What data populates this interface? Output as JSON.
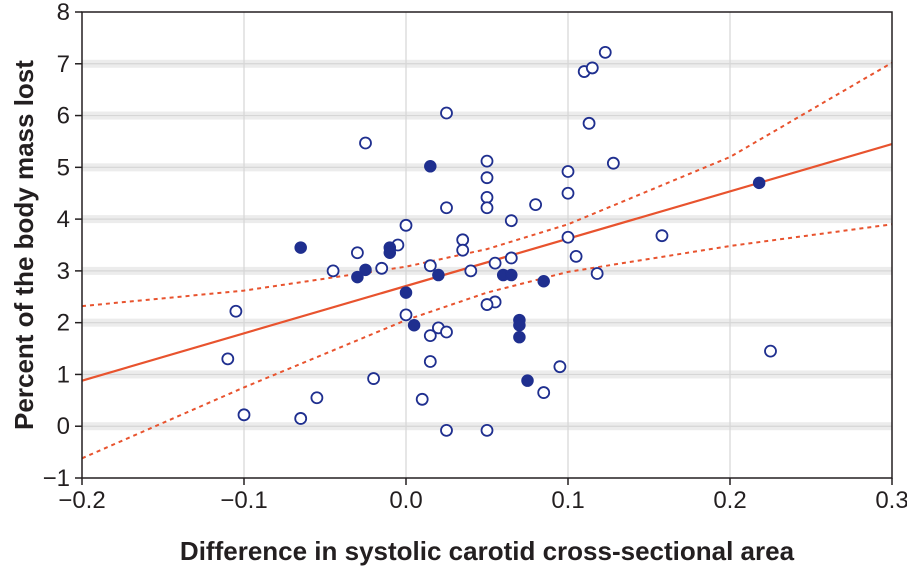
{
  "chart_data": {
    "type": "scatter",
    "title": "",
    "xlabel": "Difference in systolic carotid cross-sectional area",
    "ylabel": "Percent of the body mass lost",
    "xlim": [
      -0.2,
      0.3
    ],
    "ylim": [
      -1,
      8
    ],
    "x_ticks": [
      -0.2,
      -0.1,
      0.0,
      0.1,
      0.2,
      0.3
    ],
    "x_tick_labels": [
      "−0.2",
      "−0.1",
      "0.0",
      "0.1",
      "0.2",
      "0.3"
    ],
    "y_ticks": [
      -1,
      0,
      1,
      2,
      3,
      4,
      5,
      6,
      7,
      8
    ],
    "y_tick_labels": [
      "−1",
      "0",
      "1",
      "2",
      "3",
      "4",
      "5",
      "6",
      "7",
      "8"
    ],
    "grid": true,
    "colors": {
      "points": "#1f2f8f",
      "fit_line": "#e8532e",
      "confidence_band": "#e8532e",
      "grid": "#d6d6d6",
      "gridband": "#ececec",
      "axis": "#231f20"
    },
    "series": [
      {
        "marker": "open-circle",
        "points": [
          {
            "x": 0.123,
            "y": 7.22
          },
          {
            "x": 0.11,
            "y": 6.85
          },
          {
            "x": 0.115,
            "y": 6.92
          },
          {
            "x": 0.025,
            "y": 6.05
          },
          {
            "x": 0.113,
            "y": 5.85
          },
          {
            "x": -0.025,
            "y": 5.47
          },
          {
            "x": 0.05,
            "y": 5.12
          },
          {
            "x": 0.128,
            "y": 5.08
          },
          {
            "x": 0.1,
            "y": 4.92
          },
          {
            "x": 0.05,
            "y": 4.8
          },
          {
            "x": 0.1,
            "y": 4.5
          },
          {
            "x": 0.05,
            "y": 4.42
          },
          {
            "x": 0.025,
            "y": 4.22
          },
          {
            "x": 0.05,
            "y": 4.22
          },
          {
            "x": 0.08,
            "y": 4.28
          },
          {
            "x": 0.065,
            "y": 3.97
          },
          {
            "x": 0.0,
            "y": 3.88
          },
          {
            "x": 0.158,
            "y": 3.68
          },
          {
            "x": 0.1,
            "y": 3.65
          },
          {
            "x": 0.035,
            "y": 3.6
          },
          {
            "x": -0.005,
            "y": 3.5
          },
          {
            "x": 0.035,
            "y": 3.4
          },
          {
            "x": -0.03,
            "y": 3.35
          },
          {
            "x": 0.105,
            "y": 3.28
          },
          {
            "x": 0.065,
            "y": 3.25
          },
          {
            "x": 0.055,
            "y": 3.15
          },
          {
            "x": 0.015,
            "y": 3.1
          },
          {
            "x": -0.045,
            "y": 3.0
          },
          {
            "x": -0.015,
            "y": 3.05
          },
          {
            "x": 0.04,
            "y": 3.0
          },
          {
            "x": 0.118,
            "y": 2.95
          },
          {
            "x": 0.055,
            "y": 2.4
          },
          {
            "x": 0.05,
            "y": 2.35
          },
          {
            "x": -0.105,
            "y": 2.22
          },
          {
            "x": 0.0,
            "y": 2.15
          },
          {
            "x": 0.02,
            "y": 1.9
          },
          {
            "x": 0.025,
            "y": 1.82
          },
          {
            "x": 0.015,
            "y": 1.75
          },
          {
            "x": -0.11,
            "y": 1.3
          },
          {
            "x": 0.015,
            "y": 1.25
          },
          {
            "x": 0.095,
            "y": 1.15
          },
          {
            "x": 0.225,
            "y": 1.45
          },
          {
            "x": -0.02,
            "y": 0.92
          },
          {
            "x": -0.055,
            "y": 0.55
          },
          {
            "x": 0.01,
            "y": 0.52
          },
          {
            "x": 0.085,
            "y": 0.65
          },
          {
            "x": -0.1,
            "y": 0.22
          },
          {
            "x": -0.065,
            "y": 0.15
          },
          {
            "x": 0.025,
            "y": -0.08
          },
          {
            "x": 0.05,
            "y": -0.08
          }
        ]
      },
      {
        "marker": "filled-circle",
        "points": [
          {
            "x": 0.015,
            "y": 5.02
          },
          {
            "x": 0.218,
            "y": 4.7
          },
          {
            "x": -0.065,
            "y": 3.45
          },
          {
            "x": -0.01,
            "y": 3.45
          },
          {
            "x": -0.01,
            "y": 3.35
          },
          {
            "x": -0.025,
            "y": 3.02
          },
          {
            "x": -0.03,
            "y": 2.88
          },
          {
            "x": 0.02,
            "y": 2.92
          },
          {
            "x": 0.06,
            "y": 2.92
          },
          {
            "x": 0.065,
            "y": 2.92
          },
          {
            "x": 0.085,
            "y": 2.8
          },
          {
            "x": 0.0,
            "y": 2.58
          },
          {
            "x": 0.005,
            "y": 1.95
          },
          {
            "x": 0.07,
            "y": 2.05
          },
          {
            "x": 0.07,
            "y": 1.95
          },
          {
            "x": 0.07,
            "y": 1.72
          },
          {
            "x": 0.075,
            "y": 0.88
          }
        ]
      }
    ],
    "fit_line": {
      "x": [
        -0.2,
        0.3
      ],
      "y": [
        0.88,
        5.45
      ]
    },
    "confidence_upper": {
      "x": [
        -0.2,
        -0.1,
        0.0,
        0.05,
        0.1,
        0.2,
        0.3
      ],
      "y": [
        2.32,
        2.62,
        3.08,
        3.42,
        3.9,
        5.2,
        7.02
      ]
    },
    "confidence_lower": {
      "x": [
        -0.2,
        -0.1,
        0.0,
        0.05,
        0.1,
        0.2,
        0.3
      ],
      "y": [
        -0.62,
        0.75,
        2.05,
        2.58,
        2.98,
        3.48,
        3.9
      ]
    }
  }
}
